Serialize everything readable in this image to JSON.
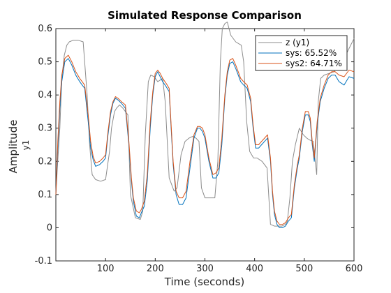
{
  "chart_data": {
    "type": "line",
    "title": "Simulated Response Comparison",
    "xlabel": "Time (seconds)",
    "ylabel": "Amplitude",
    "ylabel_sub": "y1",
    "xlim": [
      0,
      600
    ],
    "ylim": [
      -0.1,
      0.6
    ],
    "xticks": [
      100,
      200,
      300,
      400,
      500,
      600
    ],
    "yticks": [
      -0.1,
      0,
      0.1,
      0.2,
      0.3,
      0.4,
      0.5,
      0.6
    ],
    "grid": false,
    "legend_position": "top-right",
    "series": [
      {
        "name": "z (y1)",
        "color": "#8c8c8c",
        "x": [
          0,
          3,
          8,
          12,
          17,
          22,
          27,
          35,
          45,
          55,
          63,
          68,
          73,
          80,
          90,
          100,
          108,
          112,
          118,
          122,
          128,
          135,
          145,
          150,
          160,
          170,
          175,
          180,
          186,
          191,
          198,
          205,
          215,
          220,
          228,
          238,
          244,
          252,
          260,
          268,
          275,
          282,
          288,
          293,
          300,
          312,
          320,
          326,
          331,
          335,
          340,
          345,
          352,
          362,
          373,
          378,
          384,
          390,
          398,
          405,
          415,
          425,
          432,
          440,
          448,
          455,
          462,
          466,
          471,
          476,
          482,
          490,
          498,
          505,
          510,
          518,
          522,
          525,
          528,
          533,
          540,
          550,
          560,
          570,
          580,
          590,
          600
        ],
        "values": [
          0.1,
          0.18,
          0.3,
          0.45,
          0.52,
          0.55,
          0.56,
          0.565,
          0.565,
          0.56,
          0.4,
          0.25,
          0.16,
          0.145,
          0.14,
          0.145,
          0.23,
          0.3,
          0.35,
          0.36,
          0.37,
          0.36,
          0.34,
          0.1,
          0.03,
          0.025,
          0.05,
          0.28,
          0.44,
          0.46,
          0.455,
          0.44,
          0.45,
          0.38,
          0.15,
          0.11,
          0.12,
          0.22,
          0.26,
          0.27,
          0.275,
          0.27,
          0.26,
          0.12,
          0.09,
          0.09,
          0.09,
          0.2,
          0.5,
          0.6,
          0.615,
          0.62,
          0.58,
          0.56,
          0.55,
          0.5,
          0.32,
          0.23,
          0.21,
          0.21,
          0.2,
          0.18,
          0.01,
          0.005,
          0.005,
          0.005,
          0.01,
          0.02,
          0.09,
          0.2,
          0.25,
          0.3,
          0.28,
          0.27,
          0.265,
          0.26,
          0.2,
          0.16,
          0.38,
          0.45,
          0.46,
          0.465,
          0.47,
          0.49,
          0.51,
          0.54,
          0.57
        ]
      },
      {
        "name": "sys: 65.52%",
        "color": "#0072bd",
        "x": [
          0,
          4,
          8,
          12,
          18,
          25,
          32,
          40,
          48,
          53,
          58,
          65,
          70,
          75,
          80,
          88,
          95,
          100,
          105,
          110,
          115,
          120,
          125,
          132,
          140,
          147,
          152,
          156,
          162,
          168,
          172,
          178,
          184,
          190,
          195,
          200,
          205,
          210,
          215,
          222,
          228,
          232,
          236,
          242,
          248,
          255,
          262,
          270,
          278,
          285,
          290,
          295,
          300,
          308,
          316,
          322,
          328,
          334,
          340,
          345,
          350,
          356,
          362,
          367,
          372,
          378,
          385,
          392,
          397,
          402,
          408,
          414,
          420,
          426,
          432,
          436,
          440,
          445,
          450,
          456,
          462,
          468,
          474,
          480,
          486,
          490,
          496,
          502,
          508,
          512,
          516,
          520,
          526,
          532,
          540,
          548,
          555,
          562,
          570,
          580,
          590,
          600
        ],
        "values": [
          0.1,
          0.24,
          0.36,
          0.44,
          0.5,
          0.51,
          0.49,
          0.46,
          0.44,
          0.43,
          0.42,
          0.32,
          0.24,
          0.205,
          0.185,
          0.19,
          0.2,
          0.21,
          0.28,
          0.34,
          0.375,
          0.39,
          0.385,
          0.375,
          0.36,
          0.25,
          0.14,
          0.08,
          0.035,
          0.03,
          0.045,
          0.065,
          0.14,
          0.3,
          0.4,
          0.455,
          0.47,
          0.455,
          0.44,
          0.425,
          0.41,
          0.3,
          0.19,
          0.1,
          0.07,
          0.07,
          0.09,
          0.18,
          0.27,
          0.3,
          0.3,
          0.29,
          0.27,
          0.2,
          0.15,
          0.15,
          0.165,
          0.25,
          0.39,
          0.46,
          0.495,
          0.5,
          0.48,
          0.46,
          0.44,
          0.43,
          0.42,
          0.38,
          0.3,
          0.24,
          0.24,
          0.25,
          0.26,
          0.27,
          0.2,
          0.1,
          0.04,
          0.01,
          0.0,
          0.0,
          0.005,
          0.02,
          0.03,
          0.12,
          0.18,
          0.21,
          0.29,
          0.34,
          0.34,
          0.32,
          0.25,
          0.2,
          0.31,
          0.38,
          0.42,
          0.45,
          0.46,
          0.46,
          0.44,
          0.43,
          0.455,
          0.45
        ]
      },
      {
        "name": "sys2: 64.71%",
        "color": "#d95319",
        "x": [
          0,
          4,
          8,
          12,
          18,
          25,
          32,
          40,
          48,
          53,
          58,
          65,
          70,
          75,
          80,
          88,
          95,
          100,
          105,
          110,
          115,
          120,
          125,
          132,
          140,
          147,
          152,
          156,
          162,
          168,
          172,
          178,
          184,
          190,
          195,
          200,
          205,
          210,
          215,
          222,
          228,
          232,
          236,
          242,
          248,
          255,
          262,
          270,
          278,
          285,
          290,
          295,
          300,
          308,
          316,
          322,
          328,
          334,
          340,
          345,
          350,
          356,
          362,
          367,
          372,
          378,
          385,
          392,
          397,
          402,
          408,
          414,
          420,
          426,
          432,
          436,
          440,
          445,
          450,
          456,
          462,
          468,
          474,
          480,
          486,
          490,
          496,
          502,
          508,
          512,
          516,
          520,
          526,
          532,
          540,
          548,
          555,
          562,
          570,
          580,
          590,
          600
        ],
        "values": [
          0.1,
          0.26,
          0.38,
          0.46,
          0.51,
          0.52,
          0.5,
          0.47,
          0.45,
          0.44,
          0.43,
          0.34,
          0.26,
          0.215,
          0.195,
          0.2,
          0.21,
          0.22,
          0.29,
          0.35,
          0.38,
          0.395,
          0.39,
          0.38,
          0.37,
          0.26,
          0.15,
          0.09,
          0.05,
          0.045,
          0.055,
          0.08,
          0.16,
          0.32,
          0.41,
          0.465,
          0.475,
          0.465,
          0.45,
          0.435,
          0.42,
          0.31,
          0.2,
          0.11,
          0.09,
          0.09,
          0.11,
          0.2,
          0.28,
          0.305,
          0.305,
          0.3,
          0.28,
          0.21,
          0.16,
          0.165,
          0.18,
          0.27,
          0.4,
          0.47,
          0.505,
          0.51,
          0.49,
          0.47,
          0.45,
          0.44,
          0.43,
          0.39,
          0.31,
          0.25,
          0.25,
          0.26,
          0.27,
          0.28,
          0.21,
          0.11,
          0.05,
          0.02,
          0.01,
          0.01,
          0.015,
          0.03,
          0.04,
          0.13,
          0.19,
          0.22,
          0.3,
          0.35,
          0.35,
          0.33,
          0.26,
          0.21,
          0.32,
          0.39,
          0.43,
          0.46,
          0.47,
          0.47,
          0.46,
          0.455,
          0.475,
          0.47
        ]
      }
    ]
  }
}
